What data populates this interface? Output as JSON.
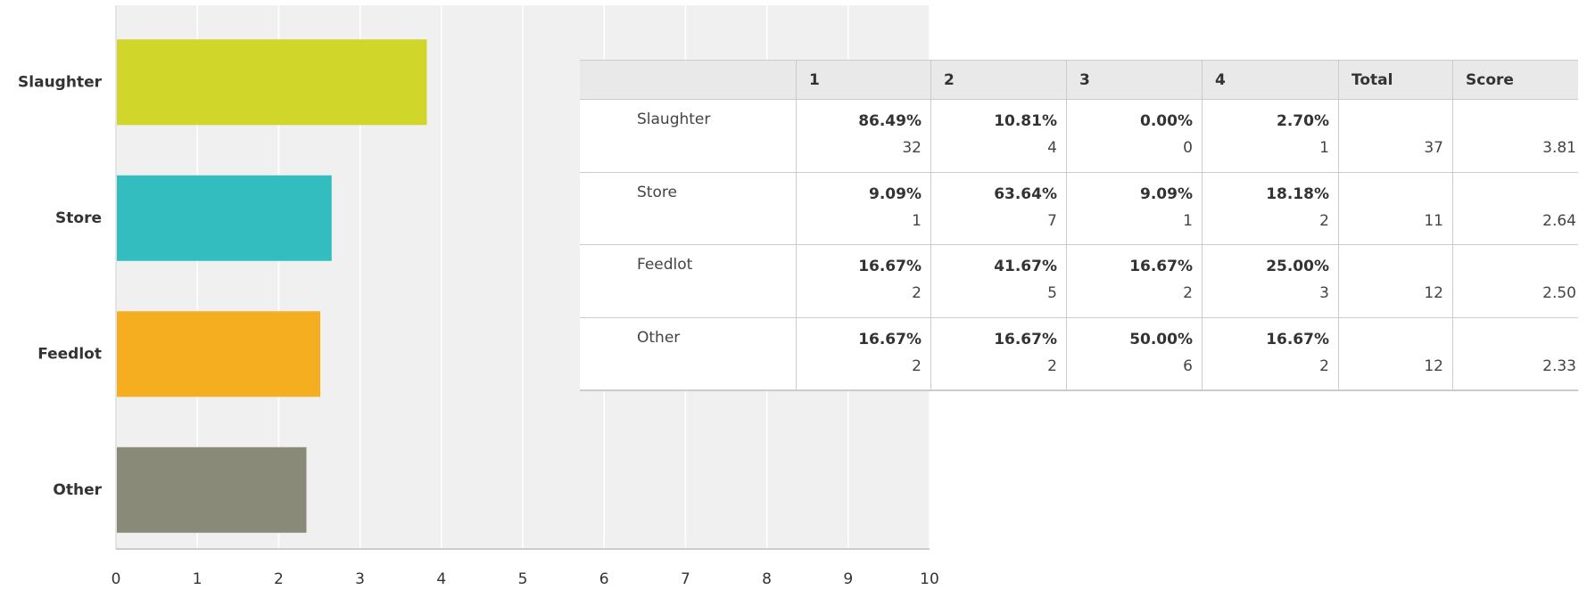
{
  "chart_data": {
    "type": "bar",
    "orientation": "horizontal",
    "categories": [
      "Slaughter",
      "Store",
      "Feedlot",
      "Other"
    ],
    "values": [
      3.81,
      2.64,
      2.5,
      2.33
    ],
    "colors": [
      "#d0d62a",
      "#33bdbf",
      "#f5ae20",
      "#898a78"
    ],
    "xlim": [
      0,
      10
    ],
    "xticks": [
      0,
      1,
      2,
      3,
      4,
      5,
      6,
      7,
      8,
      9,
      10
    ],
    "grid": true
  },
  "table": {
    "columns": [
      "1",
      "2",
      "3",
      "4",
      "Total",
      "Score"
    ],
    "rows": [
      {
        "label": "Slaughter",
        "cells": [
          {
            "percent": "86.49%",
            "count": 32
          },
          {
            "percent": "10.81%",
            "count": 4
          },
          {
            "percent": "0.00%",
            "count": 0
          },
          {
            "percent": "2.70%",
            "count": 1
          }
        ],
        "total": 37,
        "score": "3.81"
      },
      {
        "label": "Store",
        "cells": [
          {
            "percent": "9.09%",
            "count": 1
          },
          {
            "percent": "63.64%",
            "count": 7
          },
          {
            "percent": "9.09%",
            "count": 1
          },
          {
            "percent": "18.18%",
            "count": 2
          }
        ],
        "total": 11,
        "score": "2.64"
      },
      {
        "label": "Feedlot",
        "cells": [
          {
            "percent": "16.67%",
            "count": 2
          },
          {
            "percent": "41.67%",
            "count": 5
          },
          {
            "percent": "16.67%",
            "count": 2
          },
          {
            "percent": "25.00%",
            "count": 3
          }
        ],
        "total": 12,
        "score": "2.50"
      },
      {
        "label": "Other",
        "cells": [
          {
            "percent": "16.67%",
            "count": 2
          },
          {
            "percent": "16.67%",
            "count": 2
          },
          {
            "percent": "50.00%",
            "count": 6
          },
          {
            "percent": "16.67%",
            "count": 2
          }
        ],
        "total": 12,
        "score": "2.33"
      }
    ]
  }
}
